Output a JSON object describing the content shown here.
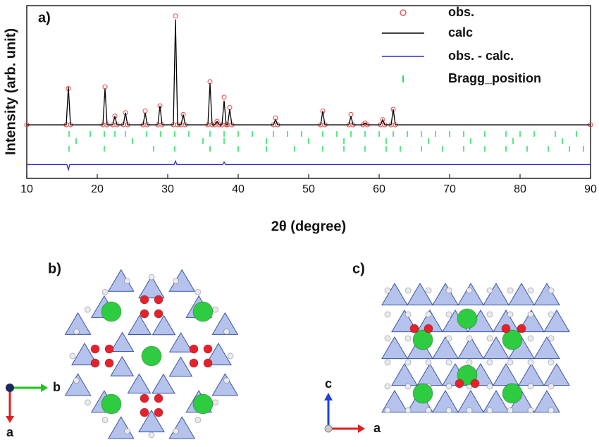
{
  "chart_data": {
    "type": "line",
    "panel_label": "a)",
    "xlabel": "2θ (degree)",
    "ylabel": "Intensity (arb. unit)",
    "xlim": [
      10,
      90
    ],
    "ylim": [
      0,
      100
    ],
    "xticks": [
      10,
      20,
      30,
      40,
      50,
      60,
      70,
      80,
      90
    ],
    "legend": "upper right",
    "series": [
      {
        "name": "obs.",
        "color": "#e8403c",
        "style": "circle",
        "x": [
          10,
          15.6,
          15.9,
          16.2,
          20.8,
          21.1,
          21.4,
          22.2,
          22.5,
          22.8,
          23.7,
          24,
          24.3,
          26.5,
          26.8,
          27.1,
          28.6,
          28.9,
          29.2,
          30.8,
          31.1,
          31.4,
          31.9,
          32.2,
          32.5,
          35.7,
          36,
          36.3,
          36.7,
          37,
          37.3,
          37.7,
          38,
          38.3,
          38.5,
          38.8,
          39.1,
          45,
          45.3,
          45.6,
          51.7,
          52,
          52.3,
          55.7,
          56,
          56.3,
          57.7,
          58,
          58.3,
          60.2,
          60.5,
          60.8,
          61.7,
          62,
          62.3,
          90
        ],
        "values": [
          31,
          31,
          52,
          31,
          31,
          53,
          31,
          31,
          36,
          31,
          31,
          38,
          31,
          31,
          39,
          31,
          31,
          42,
          31,
          31,
          94,
          31,
          31,
          37,
          31,
          31,
          56,
          31,
          31,
          33,
          31,
          31,
          47,
          31,
          31,
          41,
          31,
          31,
          35,
          31,
          31,
          39,
          31,
          31,
          37,
          31,
          31,
          32,
          31,
          31,
          34,
          31,
          31,
          40,
          31,
          31
        ]
      },
      {
        "name": "calc",
        "color": "#000000",
        "style": "line",
        "x": [
          10,
          15.6,
          15.9,
          16.2,
          20.8,
          21.1,
          21.4,
          22.2,
          22.5,
          22.8,
          23.7,
          24,
          24.3,
          26.5,
          26.8,
          27.1,
          28.6,
          28.9,
          29.2,
          30.8,
          31.1,
          31.4,
          31.9,
          32.2,
          32.5,
          35.7,
          36,
          36.3,
          36.7,
          37,
          37.3,
          37.7,
          38,
          38.3,
          38.5,
          38.8,
          39.1,
          45,
          45.3,
          45.6,
          51.7,
          52,
          52.3,
          55.7,
          56,
          56.3,
          57.7,
          58,
          58.3,
          60.2,
          60.5,
          60.8,
          61.7,
          62,
          62.3,
          90
        ],
        "values": [
          31,
          31,
          53,
          31,
          31,
          52,
          31,
          31,
          36,
          31,
          31,
          38,
          31,
          31,
          38,
          31,
          31,
          42,
          31,
          31,
          92,
          31,
          31,
          37,
          31,
          31,
          55,
          31,
          31,
          33,
          31,
          31,
          45,
          31,
          31,
          40,
          31,
          31,
          34,
          31,
          31,
          39,
          31,
          31,
          36,
          31,
          31,
          32,
          31,
          31,
          34,
          31,
          31,
          40,
          31,
          31
        ]
      },
      {
        "name": "obs. - calc.",
        "color": "#2b2bd8",
        "style": "line",
        "x": [
          10,
          15.7,
          15.9,
          16.1,
          30.9,
          31.1,
          31.3,
          37.8,
          38,
          38.2,
          90
        ],
        "values": [
          8,
          8,
          5,
          8,
          8,
          10,
          8,
          8,
          9.5,
          8,
          8
        ]
      },
      {
        "name": "Bragg_position",
        "color": "#22e05a",
        "style": "tick",
        "x": [
          16,
          19,
          21,
          22.5,
          24,
          27,
          29,
          31,
          33,
          36,
          38,
          40,
          42,
          45,
          47,
          49,
          52,
          54,
          56,
          58,
          60,
          62,
          64,
          66,
          68,
          70,
          72,
          75,
          78,
          80,
          82,
          85,
          88,
          17,
          25,
          35,
          38,
          44,
          50,
          55,
          61,
          67,
          73,
          79,
          86,
          16,
          21,
          28,
          31,
          36,
          40,
          44,
          48,
          52,
          55,
          58,
          61,
          63,
          66,
          69,
          72,
          75,
          78,
          81,
          84,
          87,
          89
        ],
        "values": [
          25.7,
          25.7,
          25.7,
          25.7,
          25.7,
          25.7,
          25.7,
          25.7,
          25.7,
          25.7,
          25.7,
          25.7,
          25.7,
          25.7,
          25.7,
          25.7,
          25.7,
          25.7,
          25.7,
          25.7,
          25.7,
          25.7,
          25.7,
          25.7,
          25.7,
          25.7,
          25.7,
          25.7,
          25.7,
          25.7,
          25.7,
          25.7,
          25.7,
          21.6,
          21.6,
          21.6,
          21.6,
          21.6,
          21.6,
          21.6,
          21.6,
          21.6,
          21.6,
          21.6,
          21.6,
          17.1,
          17.1,
          17.1,
          17.1,
          17.1,
          17.1,
          17.1,
          17.1,
          17.1,
          17.1,
          17.1,
          17.1,
          17.1,
          17.1,
          17.1,
          17.1,
          17.1,
          17.1,
          17.1,
          17.1,
          17.1,
          17.1
        ]
      }
    ]
  },
  "structures": [
    {
      "label": "b)",
      "axis_labels": [
        "b",
        "a"
      ]
    },
    {
      "label": "c)",
      "axis_labels": [
        "c",
        "a"
      ]
    }
  ]
}
